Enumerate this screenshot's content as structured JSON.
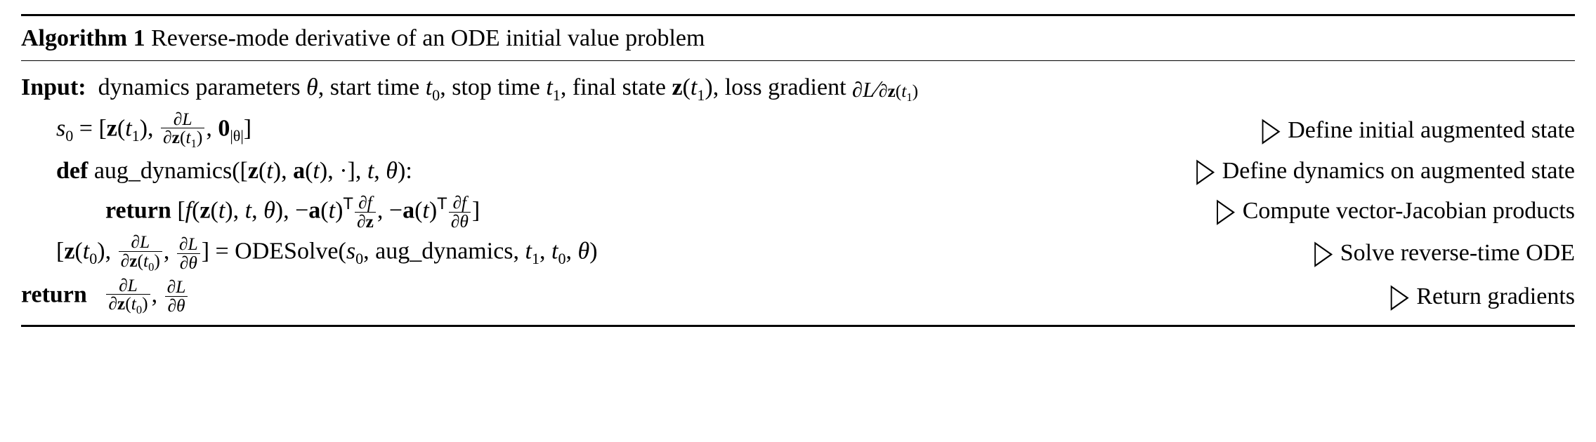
{
  "header": {
    "label": "Algorithm 1",
    "title": "Reverse-mode derivative of an ODE initial value problem"
  },
  "input": {
    "label": "Input:",
    "text_before_theta": "dynamics parameters ",
    "theta": "θ",
    "text_start": ", start time ",
    "t0": "t",
    "t0_sub": "0",
    "text_stop": ", stop time ",
    "t1": "t",
    "t1_sub": "1",
    "text_final": ", final state ",
    "z": "z",
    "zt1_arg": "t",
    "zt1_sub": "1",
    "text_loss": ", loss gradient ",
    "dL": "∂L",
    "slash": "⁄",
    "dz": "∂",
    "dzvar": "z",
    "dzt1": "t",
    "dzt1_sub": "1"
  },
  "line1": {
    "s0": "s",
    "s0_sub": "0",
    "eq": " = [",
    "z": "z",
    "t1": "t",
    "t1_sub": "1",
    "comma1": ", ",
    "frac_num_d": "∂",
    "frac_num_L": "L",
    "frac_den_d": "∂",
    "frac_den_z": "z",
    "frac_den_t": "t",
    "frac_den_tsub": "1",
    "comma2": ", ",
    "zero": "0",
    "zero_sub": "|θ|",
    "close": "]",
    "comment": "Define initial augmented state"
  },
  "line2": {
    "def": "def",
    "fname": " aug_dynamics([",
    "z": "z",
    "t": "t",
    "comma1": ", ",
    "a": "a",
    "comma2": ", ·], ",
    "t2": "t",
    "comma3": ", ",
    "theta": "θ",
    "close": "):",
    "comment": "Define dynamics on augmented state"
  },
  "line3": {
    "ret": "return",
    "open": " [",
    "f": "f",
    "lpar": "(",
    "z": "z",
    "t": "t",
    "comma1": ", ",
    "t2": "t",
    "comma2": ", ",
    "theta": "θ",
    "rpar": "), −",
    "a": "a",
    "at": "t",
    "T": "T",
    "frac1_num": "∂f",
    "frac1_den_d": "∂",
    "frac1_den_z": "z",
    "comma3": ", −",
    "a2": "a",
    "at2": "t",
    "T2": "T",
    "frac2_num": "∂f",
    "frac2_den": "∂θ",
    "close": "]",
    "comment": "Compute vector-Jacobian products"
  },
  "line4": {
    "open": "[",
    "z": "z",
    "t0": "t",
    "t0_sub": "0",
    "comma1": ", ",
    "f1_num_d": "∂",
    "f1_num_L": "L",
    "f1_den_d": "∂",
    "f1_den_z": "z",
    "f1_den_t": "t",
    "f1_den_tsub": "0",
    "comma2": ", ",
    "f2_num_d": "∂",
    "f2_num_L": "L",
    "f2_den": "∂θ",
    "close": "] = ODESolve(",
    "s0": "s",
    "s0_sub": "0",
    "comma3": ", aug_dynamics, ",
    "t1": "t",
    "t1_sub": "1",
    "comma4": ", ",
    "t0b": "t",
    "t0b_sub": "0",
    "comma5": ", ",
    "theta": "θ",
    "rpar": ")",
    "comment": "Solve reverse-time ODE"
  },
  "line5": {
    "ret": "return",
    "f1_num_d": "∂",
    "f1_num_L": "L",
    "f1_den_d": "∂",
    "f1_den_z": "z",
    "f1_den_t": "t",
    "f1_den_tsub": "0",
    "comma": ", ",
    "f2_num_d": "∂",
    "f2_num_L": "L",
    "f2_den": "∂θ",
    "comment": "Return gradients"
  }
}
